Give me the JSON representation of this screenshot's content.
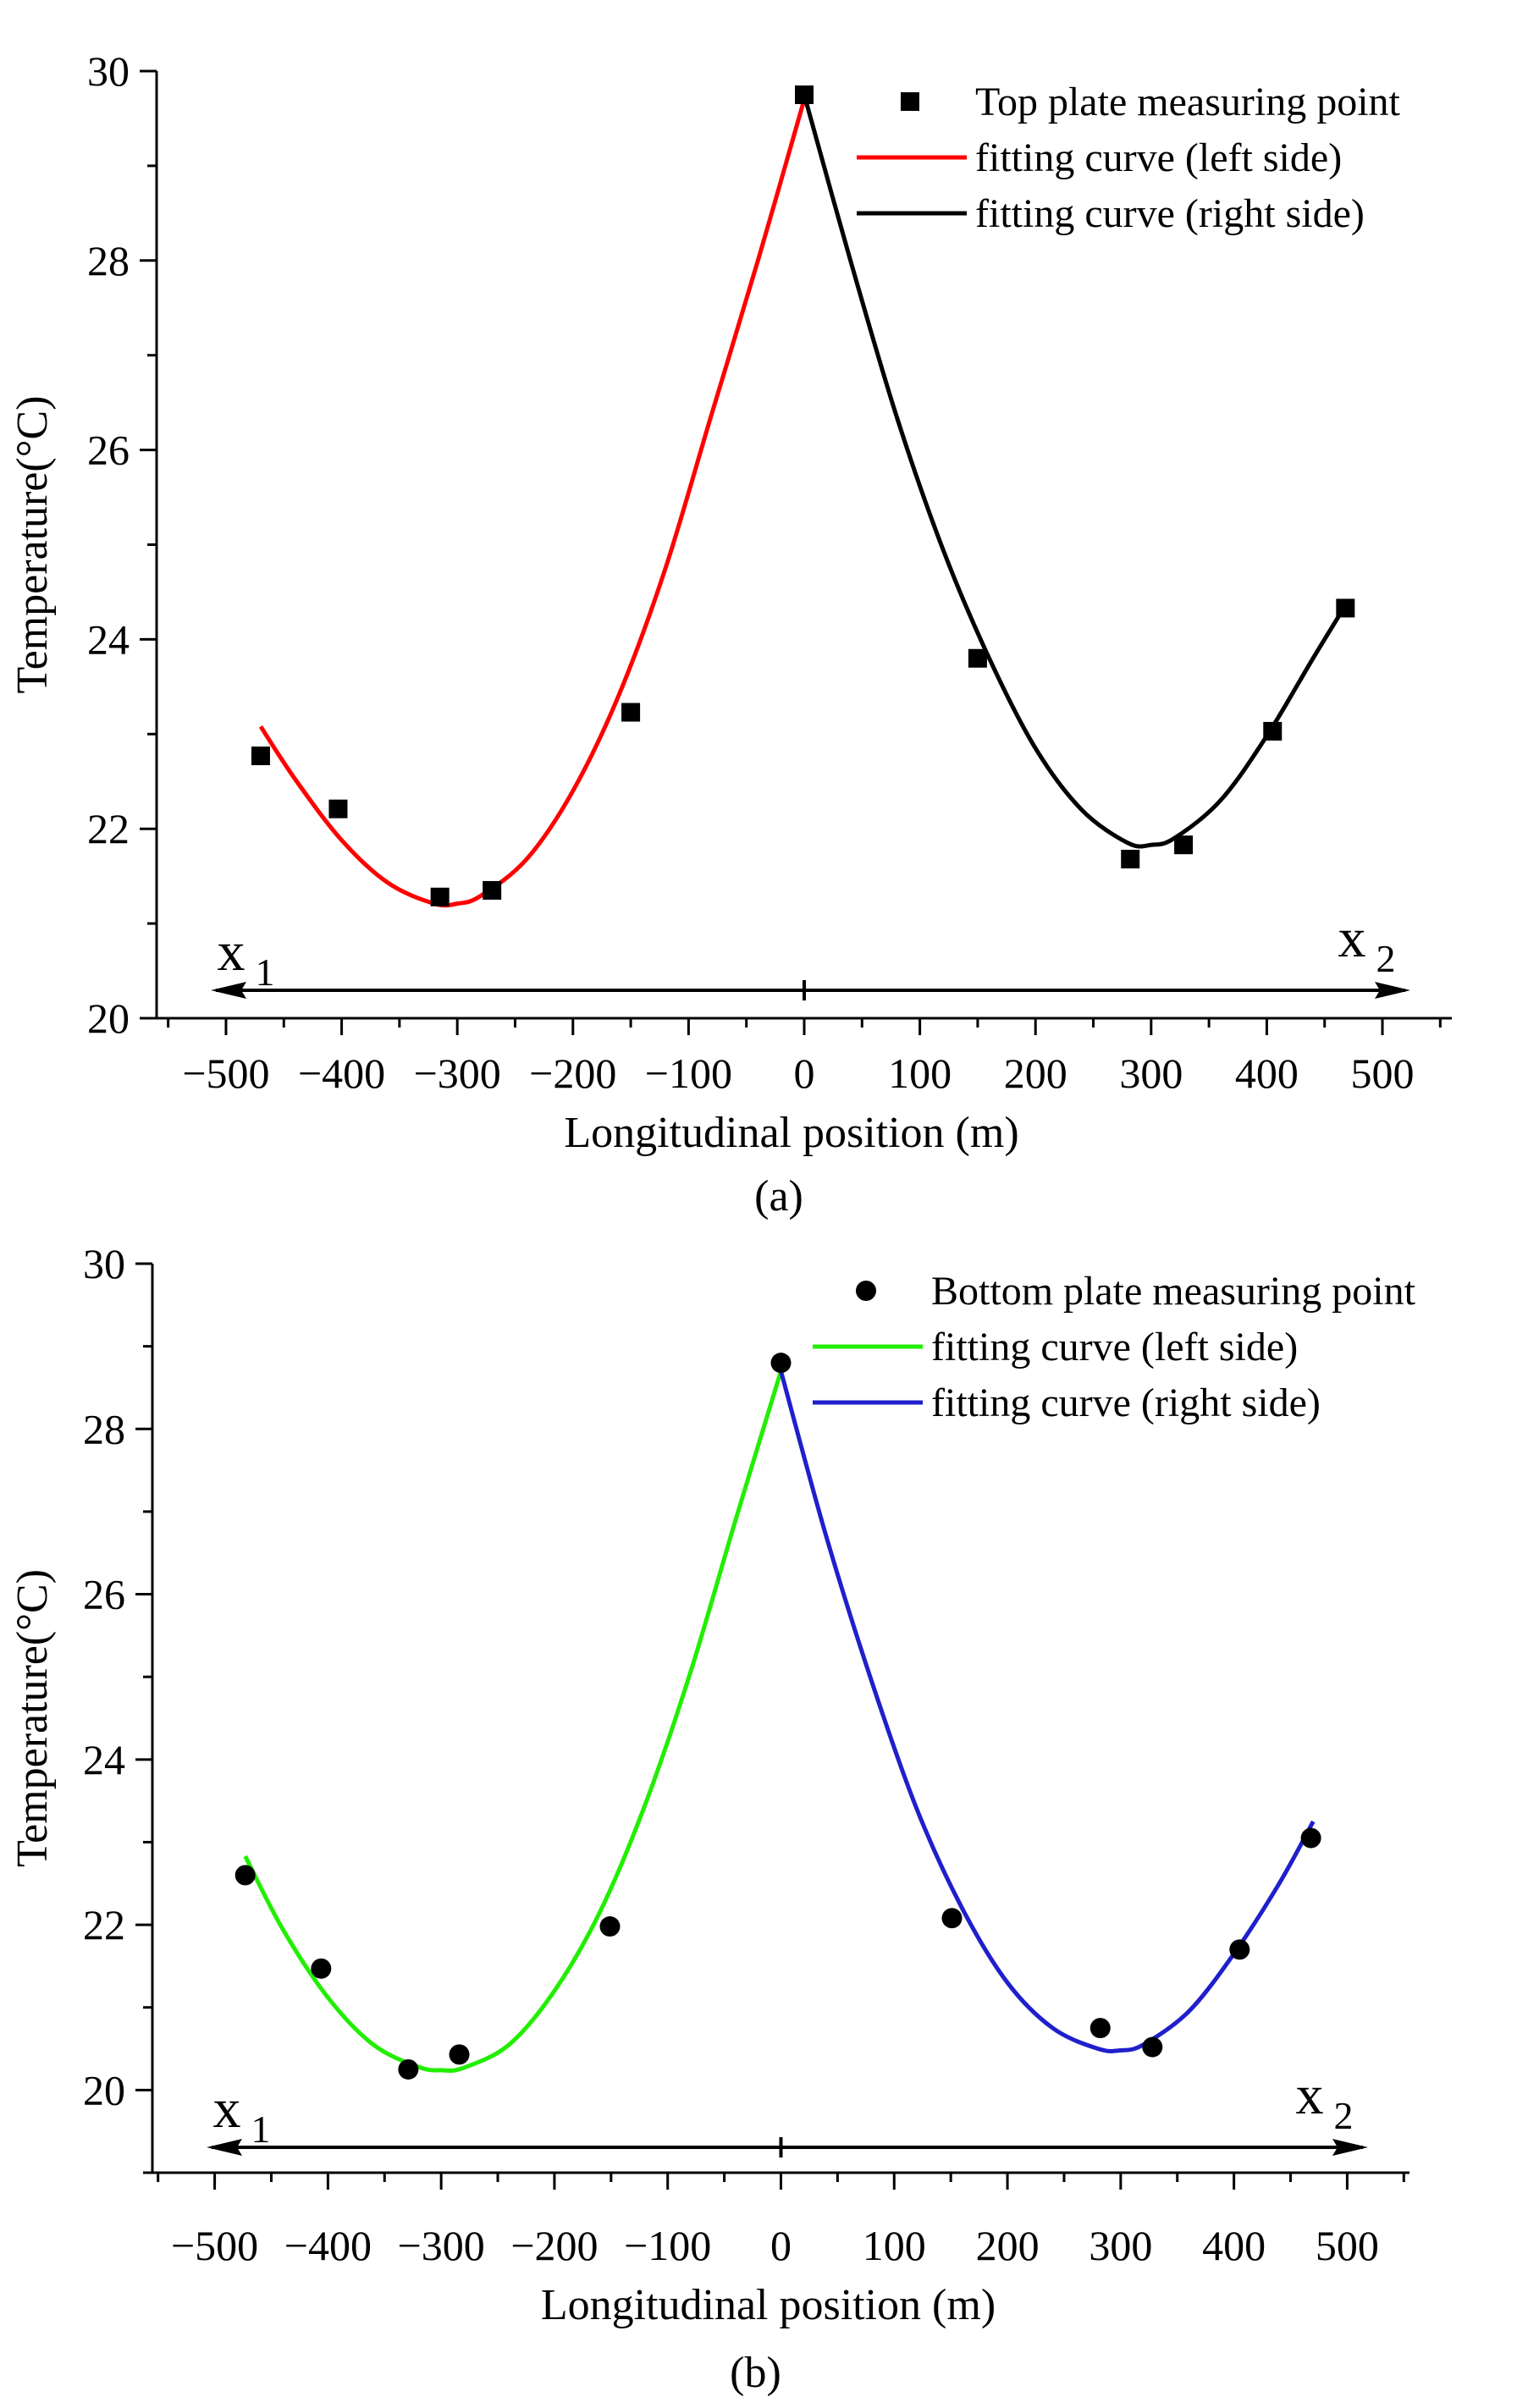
{
  "chart_data": [
    {
      "id": "a",
      "type": "scatter",
      "panel_label": "(a)",
      "xlabel": "Longitudinal position (m)",
      "ylabel": "Temperature(°C)",
      "xlim": [
        -560,
        560
      ],
      "ylim": [
        20,
        30
      ],
      "x_ticks": [
        -500,
        -400,
        -300,
        -200,
        -100,
        0,
        100,
        200,
        300,
        400,
        500
      ],
      "x_tick_labels": [
        "−500",
        "−400",
        "−300",
        "−200",
        "−100",
        "0",
        "100",
        "200",
        "300",
        "400",
        "500"
      ],
      "y_ticks": [
        20,
        22,
        24,
        26,
        28,
        30
      ],
      "y_tick_labels": [
        "20",
        "22",
        "24",
        "26",
        "28",
        "30"
      ],
      "marker": "square",
      "points": {
        "name": "Top plate measuring point",
        "x": [
          -470,
          -403,
          -315,
          -270,
          -150,
          0,
          150,
          282,
          328,
          405,
          468
        ],
        "y": [
          22.77,
          22.21,
          21.28,
          21.35,
          23.23,
          29.75,
          23.8,
          21.68,
          21.83,
          23.03,
          24.33
        ]
      },
      "left_fit": {
        "name": "fitting curve (left side)",
        "color": "#ff0000",
        "x": [
          -470,
          -440,
          -400,
          -360,
          -320,
          -300,
          -280,
          -240,
          -200,
          -160,
          -120,
          -80,
          -40,
          0
        ],
        "y": [
          23.08,
          22.52,
          21.88,
          21.43,
          21.21,
          21.21,
          21.29,
          21.68,
          22.4,
          23.42,
          24.75,
          26.38,
          28.0,
          29.7
        ]
      },
      "right_fit": {
        "name": "fitting curve (right side)",
        "color": "#000000",
        "x": [
          0,
          40,
          80,
          120,
          160,
          200,
          240,
          280,
          300,
          320,
          360,
          400,
          440,
          470
        ],
        "y": [
          29.75,
          28.0,
          26.35,
          24.95,
          23.8,
          22.85,
          22.2,
          21.85,
          21.83,
          21.9,
          22.3,
          22.98,
          23.8,
          24.4
        ]
      },
      "arrow": {
        "left_label": "x",
        "left_sub": "1",
        "right_label": "x",
        "right_sub": "2"
      }
    },
    {
      "id": "b",
      "type": "scatter",
      "panel_label": "(b)",
      "xlabel": "Longitudinal position (m)",
      "ylabel": "Temperature(°C)",
      "xlim": [
        -555,
        555
      ],
      "ylim": [
        19,
        30
      ],
      "x_ticks": [
        -500,
        -400,
        -300,
        -200,
        -100,
        0,
        100,
        200,
        300,
        400,
        500
      ],
      "x_tick_labels": [
        "−500",
        "−400",
        "−300",
        "−200",
        "−100",
        "0",
        "100",
        "200",
        "300",
        "400",
        "500"
      ],
      "y_ticks": [
        20,
        22,
        24,
        26,
        28,
        30
      ],
      "y_tick_labels": [
        "20",
        "22",
        "24",
        "26",
        "28",
        "30"
      ],
      "marker": "circle",
      "points": {
        "name": "Bottom plate measuring point",
        "x": [
          -473,
          -406,
          -329,
          -284,
          -151,
          0,
          151,
          282,
          328,
          405,
          468
        ],
        "y": [
          22.6,
          21.47,
          20.25,
          20.43,
          21.98,
          28.8,
          22.08,
          20.75,
          20.52,
          21.7,
          23.05
        ]
      },
      "left_fit": {
        "name": "fitting curve (left side)",
        "color": "#22ee00",
        "x": [
          -473,
          -440,
          -400,
          -360,
          -320,
          -300,
          -280,
          -240,
          -200,
          -160,
          -120,
          -80,
          -40,
          0
        ],
        "y": [
          22.83,
          21.95,
          21.12,
          20.55,
          20.28,
          20.24,
          20.27,
          20.55,
          21.2,
          22.15,
          23.45,
          25.05,
          26.9,
          28.7
        ]
      },
      "right_fit": {
        "name": "fitting curve (right side)",
        "color": "#1f1fcc",
        "x": [
          0,
          40,
          80,
          120,
          160,
          200,
          240,
          280,
          300,
          320,
          360,
          400,
          440,
          470
        ],
        "y": [
          28.7,
          26.7,
          24.95,
          23.4,
          22.2,
          21.3,
          20.75,
          20.5,
          20.48,
          20.55,
          20.95,
          21.65,
          22.5,
          23.25
        ]
      },
      "arrow": {
        "left_label": "x",
        "left_sub": "1",
        "right_label": "x",
        "right_sub": "2"
      }
    }
  ]
}
